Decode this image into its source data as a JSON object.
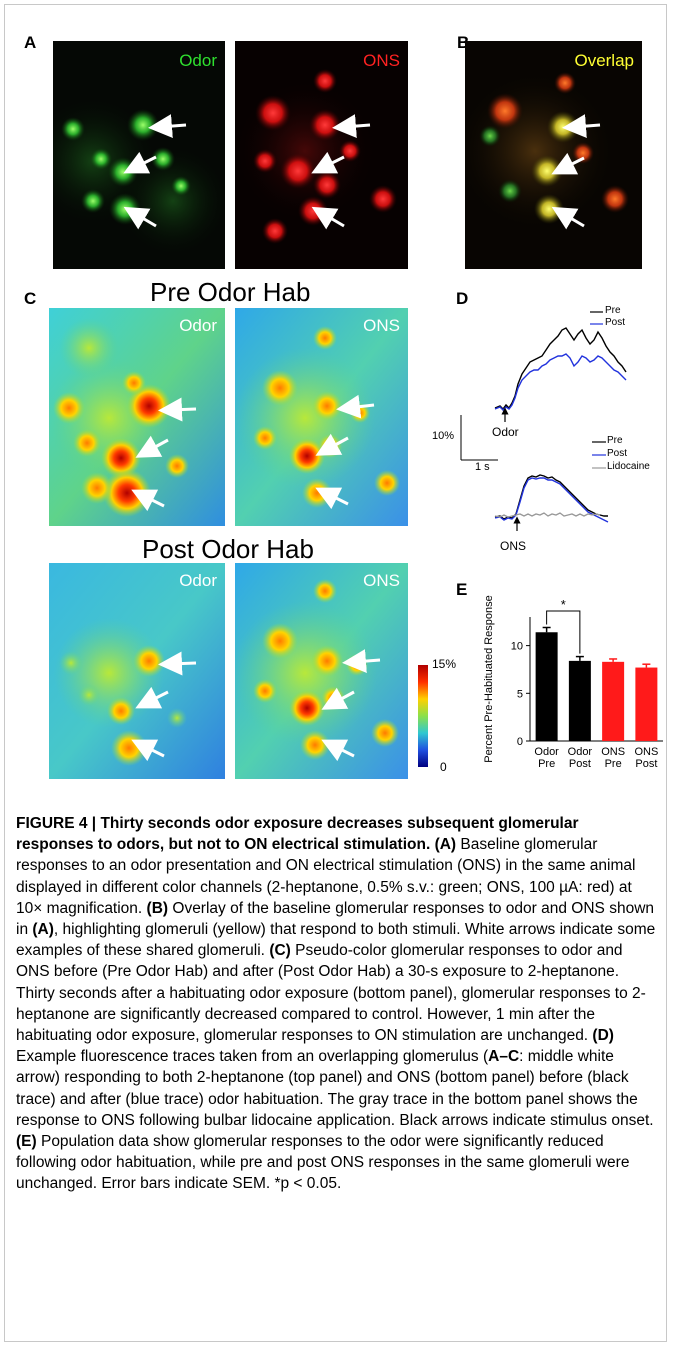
{
  "panels": {
    "A": {
      "label": "A",
      "images": [
        {
          "channel_label": "Odor",
          "label_color": "#2fe02f"
        },
        {
          "channel_label": "ONS",
          "label_color": "#ff2222"
        }
      ]
    },
    "B": {
      "label": "B",
      "channel_label": "Overlap",
      "label_color": "#ffff33"
    },
    "C": {
      "label": "C",
      "pre_heading": "Pre Odor Hab",
      "post_heading": "Post Odor Hab",
      "pre_images": [
        {
          "channel_label": "Odor"
        },
        {
          "channel_label": "ONS"
        }
      ],
      "post_images": [
        {
          "channel_label": "Odor"
        },
        {
          "channel_label": "ONS"
        }
      ],
      "colorbar": {
        "max_label": "15%",
        "min_label": "0"
      }
    },
    "D": {
      "label": "D",
      "top_legend": [
        "Pre",
        "Post"
      ],
      "bottom_legend": [
        "Pre",
        "Post",
        "Lidocaine"
      ],
      "top_stimulus": "Odor",
      "bottom_stimulus": "ONS",
      "scale_y": "10%",
      "scale_x": "1 s",
      "colors": {
        "pre": "#000000",
        "post": "#2233dd",
        "lidocaine": "#999999"
      }
    },
    "E": {
      "label": "E"
    }
  },
  "chart_data": {
    "type": "bar",
    "categories": [
      "Odor Pre",
      "Odor Post",
      "ONS Pre",
      "ONS Post"
    ],
    "category_lines": [
      [
        "Odor",
        "Pre"
      ],
      [
        "Odor",
        "Post"
      ],
      [
        "ONS",
        "Pre"
      ],
      [
        "ONS",
        "Post"
      ]
    ],
    "values": [
      11.4,
      8.4,
      8.3,
      7.7
    ],
    "errors": [
      0.5,
      0.45,
      0.3,
      0.35
    ],
    "bar_colors": [
      "#000000",
      "#000000",
      "#ff1a1a",
      "#ff1a1a"
    ],
    "ylabel": "Percent Pre-Habituated Response",
    "ylim": [
      0,
      13
    ],
    "yticks": [
      0,
      5,
      10
    ],
    "significance": {
      "between": [
        "Odor Pre",
        "Odor Post"
      ],
      "label": "*"
    }
  },
  "caption": {
    "figure_label": "FIGURE 4 | ",
    "title": "Thirty seconds odor exposure decreases subsequent glomerular responses to odors, but not to ON electrical stimulation.",
    "segments": [
      {
        "ref": "(A)",
        "text": " Baseline glomerular responses to an odor presentation and ON electrical stimulation (ONS) in the same animal displayed in different color channels (2-heptanone, 0.5% s.v.: green; ONS, 100 µA: red) at 10× magnification. "
      },
      {
        "ref": "(B)",
        "text": " Overlay of the baseline glomerular responses to odor and ONS shown in "
      },
      {
        "ref": "(A)",
        "text": ", highlighting glomeruli (yellow) that respond to both stimuli. White arrows indicate some examples of these shared glomeruli. "
      },
      {
        "ref": "(C)",
        "text": " Pseudo-color glomerular responses to odor and ONS before (Pre Odor Hab) and after (Post Odor Hab) a 30-s exposure to 2-heptanone. Thirty seconds after a habituating odor exposure (bottom panel), glomerular responses to 2-heptanone are significantly decreased compared to control. However, 1 min after the habituating odor exposure, glomerular responses to ON stimulation are unchanged. "
      },
      {
        "ref": "(D)",
        "text": " Example fluorescence traces taken from an overlapping glomerulus ("
      },
      {
        "ref": "A–C",
        "text": ": middle white arrow) responding to both 2-heptanone (top panel) and ONS (bottom panel) before (black trace) and after (blue trace) odor habituation. The gray trace in the bottom panel shows the response to ONS following bulbar lidocaine application. Black arrows indicate stimulus onset. "
      },
      {
        "ref": "(E)",
        "text": " Population data show glomerular responses to the odor were significantly reduced following odor habituation, while pre and post ONS responses in the same glomeruli were unchanged. Error bars indicate SEM. *p < 0.05."
      }
    ]
  }
}
